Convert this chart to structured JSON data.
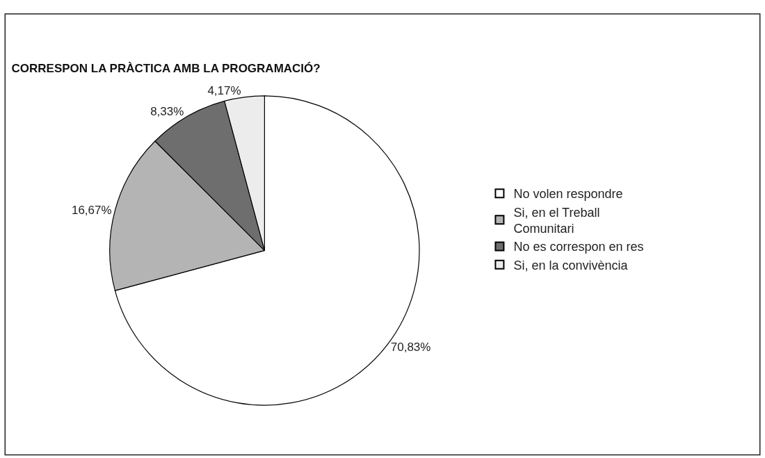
{
  "chart_data": {
    "type": "pie",
    "title": "CORRESPON LA PRÀCTICA AMB LA PROGRAMACIÓ?",
    "categories": [
      "No volen respondre",
      "Si, en el Treball Comunitari",
      "No es correspon en res",
      "Si, en la convivència"
    ],
    "values": [
      70.83,
      16.67,
      8.33,
      4.17
    ],
    "value_labels": [
      "70,83%",
      "16,67%",
      "8,33%",
      "4,17%"
    ],
    "colors": [
      "#ffffff",
      "#b4b4b4",
      "#6e6e6e",
      "#ececec"
    ],
    "legend": "right"
  }
}
